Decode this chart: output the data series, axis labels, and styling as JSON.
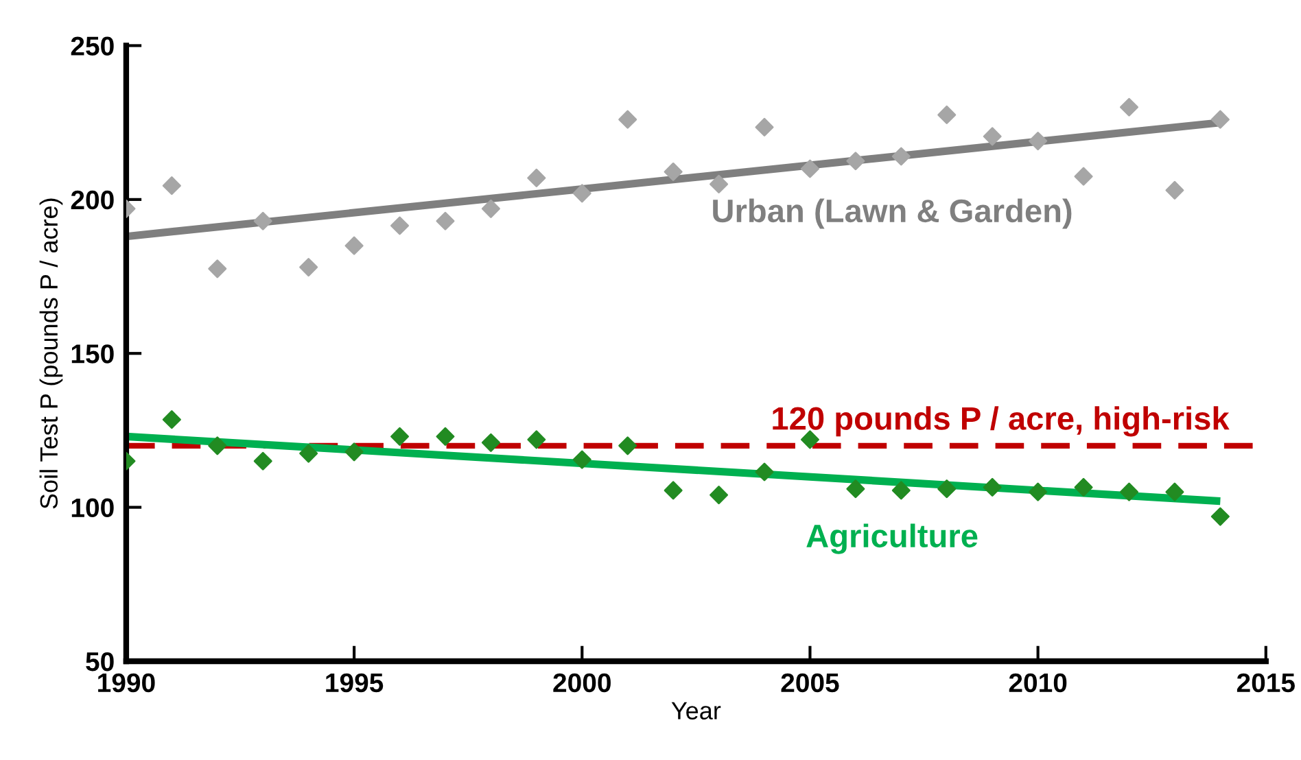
{
  "chart_data": {
    "type": "scatter",
    "xlabel": "Year",
    "ylabel": "Soil Test P (pounds P / acre)",
    "xlim": [
      1990,
      2015
    ],
    "ylim": [
      50,
      250
    ],
    "xticks": [
      1990,
      1995,
      2000,
      2005,
      2010,
      2015
    ],
    "yticks": [
      50,
      100,
      150,
      200,
      250
    ],
    "grid": false,
    "legend": false,
    "series": [
      {
        "marker": "diamond",
        "color": "#a6a6a6",
        "x": [
          1990,
          1991,
          1992,
          1993,
          1994,
          1995,
          1996,
          1997,
          1998,
          1999,
          2000,
          2001,
          2002,
          2003,
          2004,
          2005,
          2006,
          2007,
          2008,
          2009,
          2010,
          2011,
          2012,
          2013,
          2014
        ],
        "values": [
          197,
          204.5,
          177.5,
          193,
          178,
          185,
          191.5,
          193,
          197,
          207,
          202,
          226,
          209,
          205,
          223.5,
          210,
          212.5,
          214,
          227.5,
          220.5,
          219,
          207.5,
          230,
          203,
          226
        ]
      },
      {
        "type": "line",
        "name": "Urban (Lawn & Garden)",
        "color": "#7f7f7f",
        "x": [
          1990,
          2014
        ],
        "values": [
          188,
          225
        ]
      },
      {
        "marker": "diamond",
        "color": "#228b22",
        "x": [
          1990,
          1991,
          1992,
          1993,
          1994,
          1995,
          1996,
          1997,
          1998,
          1999,
          2000,
          2001,
          2002,
          2003,
          2004,
          2005,
          2006,
          2007,
          2008,
          2009,
          2010,
          2011,
          2012,
          2013,
          2014
        ],
        "values": [
          115,
          128.5,
          120,
          115,
          117.5,
          118,
          123,
          123,
          121,
          122,
          115.5,
          120,
          105.5,
          104,
          111.5,
          122,
          106,
          105.5,
          106,
          106.5,
          105,
          106.5,
          105,
          105,
          97
        ]
      },
      {
        "type": "line",
        "name": "Agriculture",
        "color": "#00b050",
        "x": [
          1990,
          2014
        ],
        "values": [
          123,
          102
        ]
      }
    ],
    "ref_lines": [
      {
        "axis": "y",
        "value": 120,
        "label": "120 pounds P / acre, high-risk",
        "color": "#c00000",
        "line_style": "dashed"
      }
    ]
  }
}
